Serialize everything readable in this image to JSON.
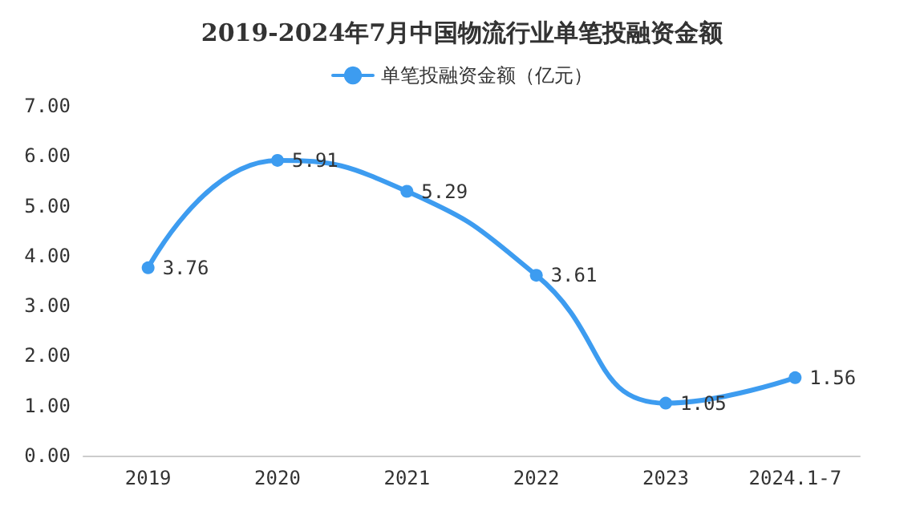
{
  "chart_data": {
    "type": "line",
    "title": "2019-2024年7月中国物流行业单笔投融资金额",
    "categories": [
      "2019",
      "2020",
      "2021",
      "2022",
      "2023",
      "2024.1-7"
    ],
    "series": [
      {
        "name": "单笔投融资金额（亿元）",
        "color": "#3d9cf0",
        "values": [
          3.76,
          5.91,
          5.29,
          3.61,
          1.05,
          1.56
        ]
      }
    ],
    "ylim": [
      0,
      7
    ],
    "yticks": [
      {
        "value": 0,
        "label": "0.00"
      },
      {
        "value": 1,
        "label": "1.00"
      },
      {
        "value": 2,
        "label": "2.00"
      },
      {
        "value": 3,
        "label": "3.00"
      },
      {
        "value": 4,
        "label": "4.00"
      },
      {
        "value": 5,
        "label": "5.00"
      },
      {
        "value": 6,
        "label": "6.00"
      },
      {
        "value": 7,
        "label": "7.00"
      }
    ],
    "grid": false,
    "legend": "top",
    "marker": "circle",
    "line_style": "solid",
    "data_labels": true
  }
}
